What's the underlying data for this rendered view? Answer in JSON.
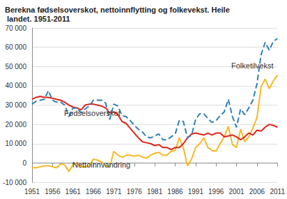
{
  "chart_data": {
    "type": "line",
    "title": "Berekna fødselsoverskot, nettoinnflytting og folkevekst. Heile landet. 1951-2011",
    "x": [
      1951,
      1952,
      1953,
      1954,
      1955,
      1956,
      1957,
      1958,
      1959,
      1960,
      1961,
      1962,
      1963,
      1964,
      1965,
      1966,
      1967,
      1968,
      1969,
      1970,
      1971,
      1972,
      1973,
      1974,
      1975,
      1976,
      1977,
      1978,
      1979,
      1980,
      1981,
      1982,
      1983,
      1984,
      1985,
      1986,
      1987,
      1988,
      1989,
      1990,
      1991,
      1992,
      1993,
      1994,
      1995,
      1996,
      1997,
      1998,
      1999,
      2000,
      2001,
      2002,
      2003,
      2004,
      2005,
      2006,
      2007,
      2008,
      2009,
      2010,
      2011
    ],
    "series": [
      {
        "name": "Folketilvekst",
        "color": "#2f7fb8",
        "line_style": "dashed",
        "values": [
          30500,
          32000,
          32500,
          33000,
          37500,
          32500,
          31500,
          31500,
          30000,
          24000,
          28500,
          28500,
          26000,
          28000,
          29500,
          32500,
          32500,
          32500,
          31000,
          22500,
          30500,
          29500,
          24500,
          24000,
          22000,
          19500,
          17500,
          16000,
          13500,
          13000,
          14000,
          15000,
          12000,
          12000,
          13500,
          15000,
          22000,
          21500,
          13000,
          14500,
          22500,
          25500,
          25500,
          23000,
          21000,
          22000,
          24500,
          26500,
          33000,
          24000,
          18500,
          28000,
          25000,
          28500,
          32500,
          41000,
          56000,
          62500,
          58500,
          63000,
          64500
        ]
      },
      {
        "name": "Fødselsoverskot",
        "color": "#e0231b",
        "line_style": "solid",
        "values": [
          33000,
          34000,
          34500,
          34000,
          34000,
          33500,
          33000,
          32500,
          31500,
          30000,
          29000,
          28500,
          27500,
          30000,
          30500,
          30500,
          30000,
          29500,
          28500,
          26000,
          26500,
          25000,
          21500,
          20500,
          18000,
          15500,
          13000,
          11000,
          10500,
          10000,
          9000,
          9500,
          8000,
          8000,
          7000,
          8000,
          8000,
          10000,
          13000,
          15000,
          15500,
          15000,
          14500,
          15500,
          14500,
          15500,
          15500,
          13500,
          14000,
          14500,
          13500,
          12000,
          13500,
          15500,
          14500,
          17000,
          16500,
          18500,
          20000,
          19500,
          18500
        ]
      },
      {
        "name": "Nettoinnvandring",
        "color": "#f5b922",
        "line_style": "solid",
        "values": [
          -2500,
          -2500,
          -2000,
          -1500,
          -1500,
          -2000,
          -2500,
          -500,
          -1000,
          -4500,
          -1000,
          0,
          -2000,
          -2000,
          -1500,
          2000,
          1500,
          500,
          -1500,
          -2000,
          6000,
          4000,
          3000,
          4000,
          4000,
          3500,
          4000,
          3000,
          2500,
          4000,
          5000,
          5500,
          4000,
          4000,
          6000,
          6500,
          13000,
          8000,
          -1500,
          2000,
          8000,
          10000,
          13000,
          8000,
          6500,
          6000,
          10000,
          13500,
          19000,
          9500,
          8000,
          17500,
          11000,
          13500,
          18000,
          23500,
          39500,
          43500,
          38500,
          42500,
          45500
        ]
      }
    ],
    "xlim": [
      1951,
      2011
    ],
    "xticks": [
      1951,
      1956,
      1961,
      1966,
      1971,
      1976,
      1981,
      1986,
      1991,
      1996,
      2001,
      2006,
      2011
    ],
    "ylim": [
      -10000,
      70000
    ],
    "yticks": [
      {
        "value": -10000,
        "label": "-10 000"
      },
      0,
      {
        "value": 10000,
        "label": "10 000"
      },
      {
        "value": 20000,
        "label": "20 000"
      },
      {
        "value": 30000,
        "label": "30 000"
      },
      {
        "value": 40000,
        "label": "40 000"
      },
      {
        "value": 50000,
        "label": "50 000"
      },
      {
        "value": 60000,
        "label": "60 000"
      },
      {
        "value": 70000,
        "label": "70 000"
      }
    ],
    "grid": true
  }
}
